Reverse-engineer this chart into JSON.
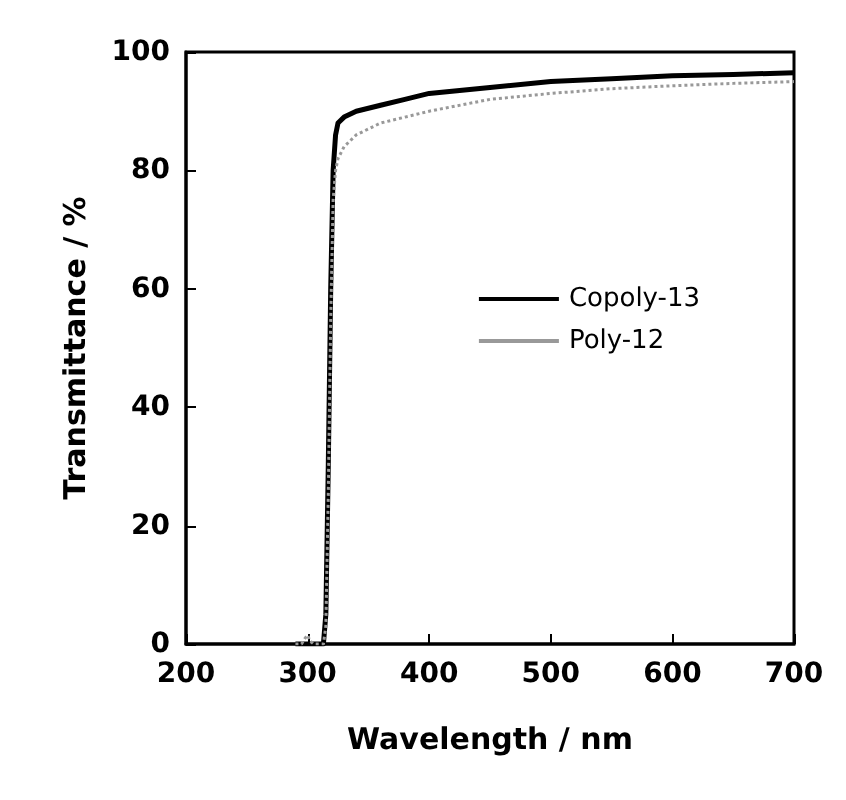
{
  "chart_data": {
    "type": "line",
    "xlabel": "Wavelength / nm",
    "ylabel": "Transmittance / %",
    "xlim": [
      200,
      700
    ],
    "ylim": [
      0,
      100
    ],
    "xticks": [
      200,
      300,
      400,
      500,
      600,
      700
    ],
    "yticks": [
      0,
      20,
      40,
      60,
      80,
      100
    ],
    "grid": false,
    "legend": "right",
    "marker": "none",
    "series": [
      {
        "name": "Copoly-13",
        "color": "#000000",
        "line_style": "solid",
        "x": [
          290,
          300,
          305,
          310,
          313,
          315,
          317,
          319,
          321,
          323,
          325,
          330,
          340,
          360,
          380,
          400,
          450,
          500,
          550,
          600,
          650,
          700
        ],
        "values": [
          0,
          0,
          0,
          0,
          0,
          5,
          30,
          60,
          80,
          86,
          88,
          89,
          90,
          91,
          92,
          93,
          94,
          95,
          95.5,
          96,
          96.2,
          96.5
        ]
      },
      {
        "name": "Poly-12",
        "color": "#999999",
        "line_style": "dotted",
        "x": [
          290,
          295,
          298,
          300,
          302,
          305,
          310,
          313,
          315,
          317,
          319,
          321,
          323,
          325,
          330,
          340,
          360,
          380,
          400,
          450,
          500,
          550,
          600,
          650,
          700
        ],
        "values": [
          0,
          0,
          1,
          1.5,
          0.5,
          0,
          0,
          0,
          3,
          25,
          55,
          75,
          80,
          82,
          84,
          86,
          88,
          89,
          90,
          92,
          93,
          93.8,
          94.3,
          94.7,
          95
        ]
      }
    ]
  }
}
